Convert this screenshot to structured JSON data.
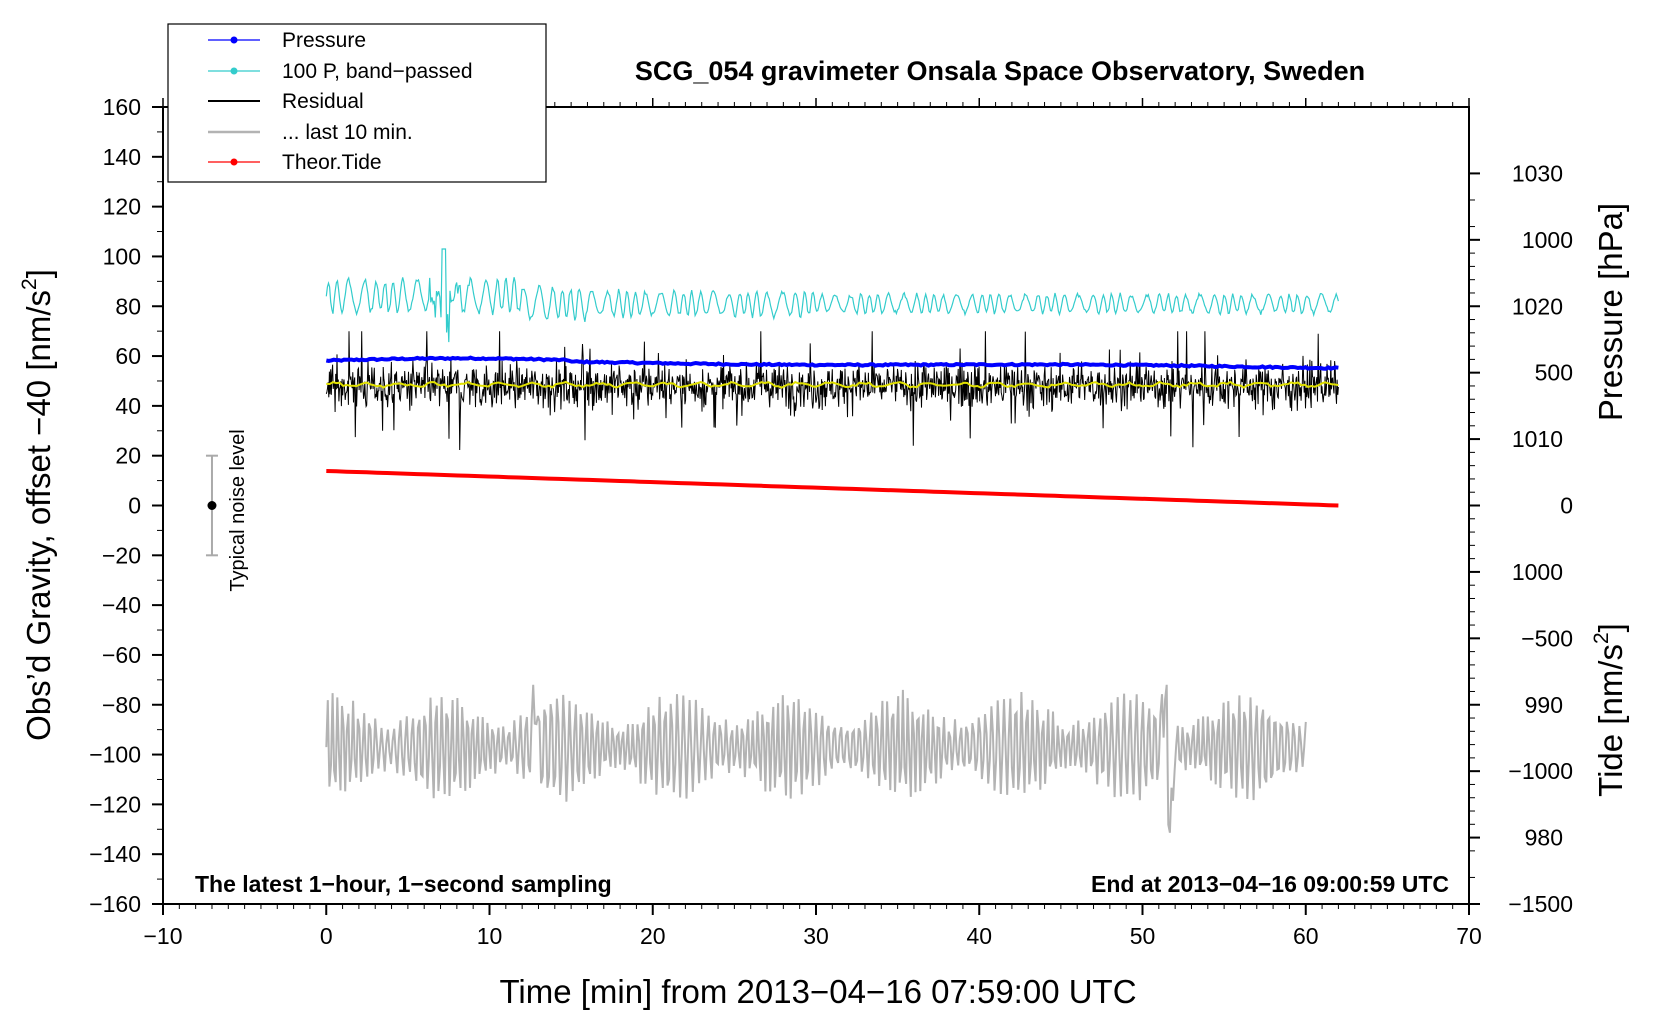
{
  "chart_data": {
    "type": "line",
    "title": "SCG_054 gravimeter Onsala Space Observatory, Sweden",
    "xlabel": "Time [min] from 2013−04−16 07:59:00 UTC",
    "ylabel": {
      "main": "Obs’d Gravity, offset −40 [nm/s",
      "sup": "2",
      "close": "]"
    },
    "y2label": "Pressure [hPa]",
    "y3label": {
      "main": "Tide [nm/s",
      "sup": "2",
      "close": "]"
    },
    "xlim": [
      -10,
      70
    ],
    "ylim": [
      -160,
      160
    ],
    "y2lim": [
      975,
      1035
    ],
    "y3lim": [
      -1500,
      1500
    ],
    "x_ticks": [
      -10,
      0,
      10,
      20,
      30,
      40,
      50,
      60,
      70
    ],
    "x_tick_labels": [
      "−10",
      "0",
      "10",
      "20",
      "30",
      "40",
      "50",
      "60",
      "70"
    ],
    "y_ticks": [
      160,
      140,
      120,
      100,
      80,
      60,
      40,
      20,
      0,
      -20,
      -40,
      -60,
      -80,
      -100,
      -120,
      -140,
      -160
    ],
    "y_tick_labels": [
      "160",
      "140",
      "120",
      "100",
      "80",
      "60",
      "40",
      "20",
      "0",
      "−20",
      "−40",
      "−60",
      "−80",
      "−100",
      "−120",
      "−140",
      "−160"
    ],
    "y2_ticks": [
      1030,
      1020,
      1010,
      1000,
      990,
      980
    ],
    "y2_tick_labels": [
      "1030",
      "1020",
      "1010",
      "1000",
      "990",
      "980"
    ],
    "y3_ticks": [
      1000,
      500,
      0,
      -500,
      -1000,
      -1500
    ],
    "y3_tick_labels": [
      "1000",
      "500",
      "0",
      "−500",
      "−1000",
      "−1500"
    ],
    "legend": {
      "position": "top-left",
      "entries": [
        {
          "label": "Pressure",
          "color": "#0000ff",
          "marker": "dot"
        },
        {
          "label": "100 P, band−passed",
          "color": "#33cccc",
          "marker": "dot"
        },
        {
          "label": "Residual",
          "color": "#000000",
          "marker": "none"
        },
        {
          "label": "... last 10 min.",
          "color": "#b3b3b3",
          "marker": "none"
        },
        {
          "label": "Theor.Tide",
          "color": "#ff0000",
          "marker": "dot"
        }
      ]
    },
    "series": [
      {
        "name": "Pressure",
        "axis": "y2",
        "color": "#0000ff",
        "x_range": [
          0,
          62
        ],
        "start": 1015.9,
        "end": 1015.4,
        "noise": 0.12
      },
      {
        "name": "100 P, band−passed",
        "axis": "y",
        "color": "#33cccc",
        "x_range": [
          0,
          62
        ],
        "mean": 81,
        "amplitude": 6,
        "spike": {
          "x": 7.2,
          "peak": 103,
          "low": 65
        }
      },
      {
        "name": "Residual",
        "axis": "y",
        "color": "#000000",
        "x_range": [
          0,
          62
        ],
        "mean": 48,
        "range": [
          15,
          70
        ]
      },
      {
        "name": "Residual smoothed",
        "axis": "y",
        "color": "#e0e000",
        "x_range": [
          0,
          62
        ],
        "mean": 48.5
      },
      {
        "name": "Theor.Tide",
        "axis": "y3",
        "color": "#ff0000",
        "x_range": [
          0,
          62
        ],
        "start": 130,
        "end": 0
      },
      {
        "name": "... last 10 min.",
        "axis": "y",
        "color": "#b3b3b3",
        "x_range": [
          0,
          60
        ],
        "mean": -97,
        "range": [
          -132,
          -72
        ]
      }
    ],
    "noise_bar": {
      "x": -7,
      "center": 0,
      "low": -20,
      "high": 20,
      "label": "Typical noise level"
    },
    "annotations": {
      "left": "The latest 1−hour, 1−second sampling",
      "right": "End at 2013−04−16 09:00:59 UTC"
    },
    "colors": {
      "pressure": "#0000ff",
      "bandpass": "#33cccc",
      "residual": "#000000",
      "smooth": "#e0e000",
      "tide": "#ff0000",
      "last10": "#b3b3b3",
      "noise": "#aaaaaa"
    }
  }
}
